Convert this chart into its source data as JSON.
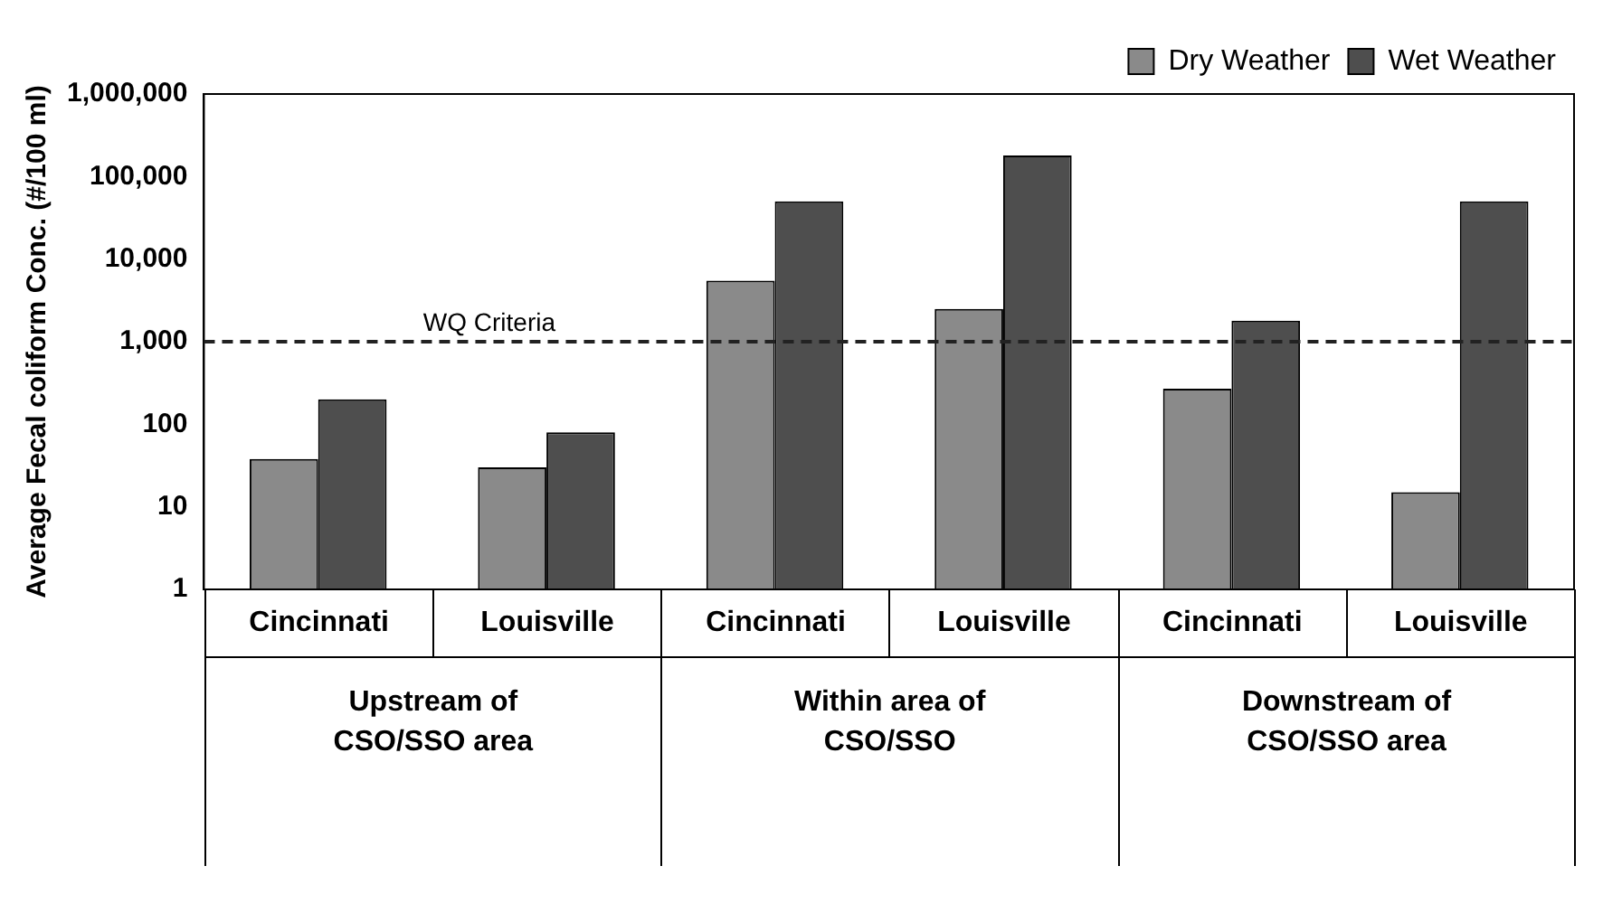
{
  "chart_data": {
    "type": "bar",
    "ylabel": "Average Fecal coliform Conc. (#/100 ml)",
    "categories": [
      "Cincinnati",
      "Louisville",
      "Cincinnati",
      "Louisville",
      "Cincinnati",
      "Louisville"
    ],
    "series": [
      {
        "name": "Dry Weather",
        "color": "#8a8a8a",
        "values": [
          38,
          30,
          5500,
          2500,
          270,
          15
        ]
      },
      {
        "name": "Wet Weather",
        "color": "#4e4e4e",
        "values": [
          200,
          80,
          50000,
          180000,
          1800,
          50000
        ]
      }
    ],
    "log": true,
    "ylim": [
      1,
      1000000
    ],
    "yticks": [
      1,
      10,
      100,
      {
        "value": 1000,
        "label": "1,000"
      },
      {
        "value": 10000,
        "label": "10,000"
      },
      {
        "value": 100000,
        "label": "100,000"
      },
      {
        "value": 1000000,
        "label": "1,000,000"
      }
    ],
    "ref_lines": [
      {
        "axis": "y",
        "value": 1000,
        "label": "WQ Criteria",
        "line_style": "dashed",
        "color": "#222222"
      }
    ],
    "annotations": [
      "Upstream of CSO/SSO area",
      "Within area of CSO/SSO",
      "Downstream of CSO/SSO area"
    ],
    "grid": false,
    "legend": "top right"
  }
}
